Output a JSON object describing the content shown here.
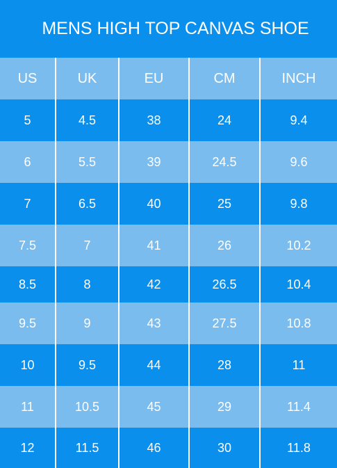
{
  "title": "MENS HIGH TOP CANVAS SHOE",
  "colors": {
    "dark": "#0a8fec",
    "light": "#7bbcef"
  },
  "headers": [
    "US",
    "UK",
    "EU",
    "CM",
    "INCH"
  ],
  "rows": [
    [
      "5",
      "4.5",
      "38",
      "24",
      "9.4"
    ],
    [
      "6",
      "5.5",
      "39",
      "24.5",
      "9.6"
    ],
    [
      "7",
      "6.5",
      "40",
      "25",
      "9.8"
    ],
    [
      "7.5",
      "7",
      "41",
      "26",
      "10.2"
    ],
    [
      "8.5",
      "8",
      "42",
      "26.5",
      "10.4"
    ],
    [
      "9.5",
      "9",
      "43",
      "27.5",
      "10.8"
    ],
    [
      "10",
      "9.5",
      "44",
      "28",
      "11"
    ],
    [
      "11",
      "10.5",
      "45",
      "29",
      "11.4"
    ],
    [
      "12",
      "11.5",
      "46",
      "30",
      "11.8"
    ]
  ]
}
